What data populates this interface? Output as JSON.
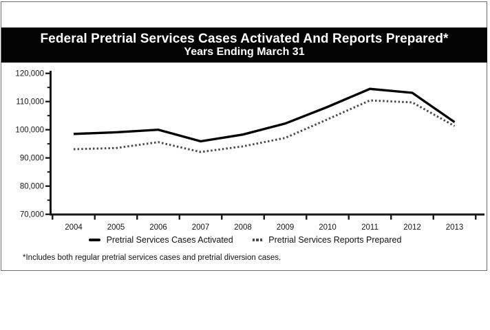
{
  "chart_data": {
    "type": "line",
    "title": "Federal Pretrial Services Cases Activated And Reports Prepared*",
    "subtitle": "Years Ending March 31",
    "categories": [
      "2004",
      "2005",
      "2006",
      "2007",
      "2008",
      "2009",
      "2010",
      "2011",
      "2012",
      "2013"
    ],
    "series": [
      {
        "name": "Pretrial Services Cases Activated",
        "line_style": "solid",
        "color": "#000000",
        "values": [
          98500,
          99100,
          100000,
          95900,
          98300,
          102200,
          108100,
          114500,
          113100,
          102700
        ]
      },
      {
        "name": "Pretrial Services Reports Prepared",
        "line_style": "dotted",
        "color": "#4a4a4a",
        "values": [
          93100,
          93500,
          95600,
          92100,
          94100,
          97100,
          103700,
          110400,
          109700,
          101300
        ]
      }
    ],
    "ylim": [
      70000,
      120000
    ],
    "ytick_interval": 10000,
    "ytick_minor_interval": 5000,
    "ytick_labels": [
      "70,000",
      "80,000",
      "90,000",
      "100,000",
      "110,000",
      "120,000"
    ],
    "grid": false,
    "legend_position": "bottom-center"
  },
  "footnote": "*Includes both regular pretrial services cases and pretrial diversion cases."
}
